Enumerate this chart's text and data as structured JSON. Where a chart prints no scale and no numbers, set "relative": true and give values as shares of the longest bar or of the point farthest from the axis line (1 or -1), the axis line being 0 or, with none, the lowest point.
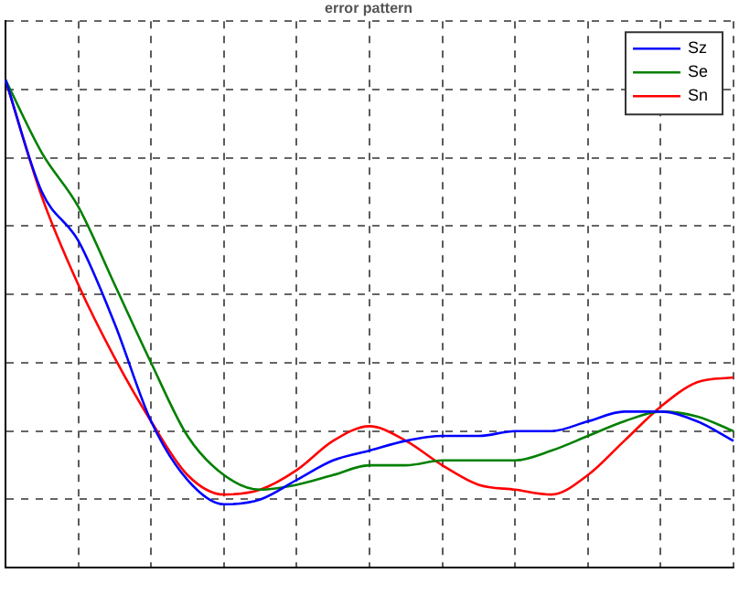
{
  "chart_data": {
    "type": "line",
    "title": "error pattern",
    "relative": true,
    "grid": true,
    "legend": "top right",
    "marker": "none",
    "line_style": "solid",
    "categories": [
      null,
      null,
      null,
      null,
      null,
      null,
      null,
      null,
      null,
      null,
      null,
      null,
      null,
      null,
      null,
      null,
      null,
      null,
      null,
      null,
      null
    ],
    "series": [
      {
        "name": "Sz",
        "color": "#0000ff",
        "values": [
          1,
          0.77,
          0.67,
          0.5,
          0.3,
          0.18,
          0.13,
          0.14,
          0.18,
          0.22,
          0.24,
          0.26,
          0.27,
          0.27,
          0.28,
          0.28,
          0.3,
          0.32,
          0.32,
          0.3,
          0.26
        ]
      },
      {
        "name": "Se",
        "color": "#008000",
        "values": [
          1,
          0.85,
          0.74,
          0.58,
          0.42,
          0.27,
          0.19,
          0.16,
          0.17,
          0.19,
          0.21,
          0.21,
          0.22,
          0.22,
          0.22,
          0.24,
          0.27,
          0.3,
          0.32,
          0.31,
          0.28
        ]
      },
      {
        "name": "Sn",
        "color": "#ff0000",
        "values": [
          1,
          0.76,
          0.58,
          0.43,
          0.3,
          0.19,
          0.15,
          0.16,
          0.2,
          0.26,
          0.29,
          0.26,
          0.21,
          0.17,
          0.16,
          0.15,
          0.19,
          0.26,
          0.33,
          0.38,
          0.39
        ]
      }
    ]
  }
}
